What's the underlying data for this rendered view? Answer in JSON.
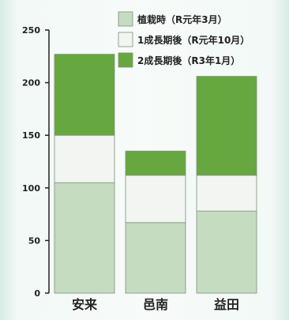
{
  "chart_data": {
    "type": "bar",
    "stacked": true,
    "categories": [
      "安来",
      "邑南",
      "益田"
    ],
    "series": [
      {
        "name": "植栽時（R元年3月）",
        "values": [
          105,
          67,
          78
        ],
        "color": "#c5dcc0"
      },
      {
        "name": "1成長期後（R元年10月）",
        "values": [
          45,
          45,
          34
        ],
        "color": "#f2f5f1"
      },
      {
        "name": "2成長期後（R3年1月）",
        "values": [
          77,
          23,
          94
        ],
        "color": "#66a83f"
      }
    ],
    "ylim": [
      0,
      250
    ],
    "yticks": [
      0,
      50,
      100,
      150,
      200,
      250
    ],
    "grid": false,
    "legend_position": "top-right",
    "xlabel": "",
    "ylabel": "",
    "title": ""
  }
}
